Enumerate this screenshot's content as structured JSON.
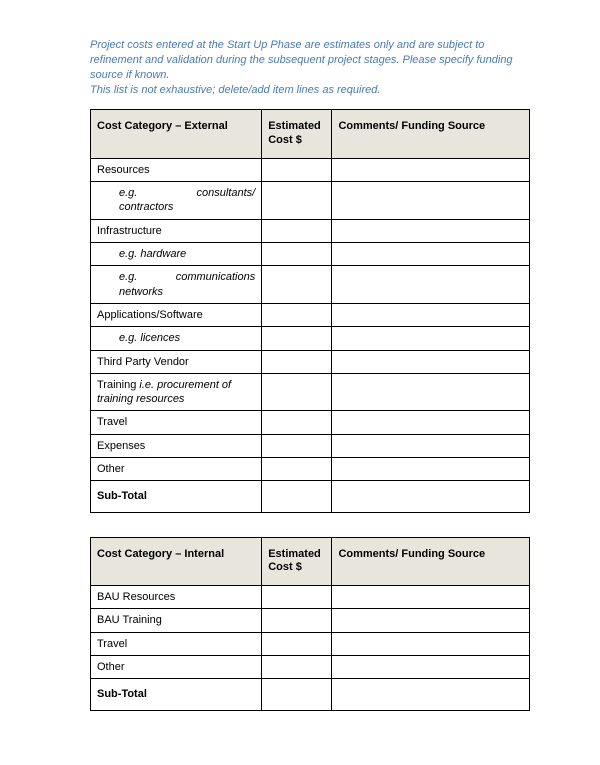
{
  "intro": {
    "line1": "Project costs entered at the Start Up Phase are estimates only and are subject to refinement and validation during the subsequent project stages. Please specify funding source if known.",
    "line2": "This list is not exhaustive; delete/add item lines as required."
  },
  "colors": {
    "intro_text": "#4a7ab5",
    "header_bg": "#e8e6dc",
    "border": "#000000",
    "page_bg": "#ffffff"
  },
  "columns": {
    "category_external": "Cost Category – External",
    "category_internal": "Cost Category – Internal",
    "cost": "Estimated Cost $",
    "comments": "Comments/ Funding Source",
    "widths": {
      "category": "39%",
      "cost": "16%",
      "comments": "45%"
    }
  },
  "table_external": {
    "rows": [
      {
        "label": "Resources",
        "indent": false,
        "italic": false,
        "cost": "",
        "comments": ""
      },
      {
        "label": "e.g. consultants/ contractors",
        "indent": true,
        "italic": true,
        "justify": true,
        "cost": "",
        "comments": ""
      },
      {
        "label": "Infrastructure",
        "indent": false,
        "italic": false,
        "cost": "",
        "comments": ""
      },
      {
        "label": "e.g. hardware",
        "indent": true,
        "italic": true,
        "cost": "",
        "comments": ""
      },
      {
        "label": "e.g. communications networks",
        "indent": true,
        "italic": true,
        "justify": true,
        "cost": "",
        "comments": ""
      },
      {
        "label": "Applications/Software",
        "indent": false,
        "italic": false,
        "cost": "",
        "comments": ""
      },
      {
        "label": "e.g. licences",
        "indent": true,
        "italic": true,
        "cost": "",
        "comments": ""
      },
      {
        "label": "Third Party Vendor",
        "indent": false,
        "italic": false,
        "cost": "",
        "comments": ""
      },
      {
        "label_html": "Training <span class=\"italic\">i.e. procurement of training resources</span>",
        "indent": false,
        "cost": "",
        "comments": ""
      },
      {
        "label": "Travel",
        "indent": false,
        "italic": false,
        "cost": "",
        "comments": ""
      },
      {
        "label": "Expenses",
        "indent": false,
        "italic": false,
        "cost": "",
        "comments": ""
      },
      {
        "label": "Other",
        "indent": false,
        "italic": false,
        "cost": "",
        "comments": ""
      }
    ],
    "subtotal": {
      "label": "Sub-Total",
      "cost": "",
      "comments": ""
    }
  },
  "table_internal": {
    "rows": [
      {
        "label": "BAU Resources",
        "indent": false,
        "italic": false,
        "cost": "",
        "comments": ""
      },
      {
        "label": "BAU Training",
        "indent": false,
        "italic": false,
        "cost": "",
        "comments": ""
      },
      {
        "label": "Travel",
        "indent": false,
        "italic": false,
        "cost": "",
        "comments": ""
      },
      {
        "label": "Other",
        "indent": false,
        "italic": false,
        "cost": "",
        "comments": ""
      }
    ],
    "subtotal": {
      "label": "Sub-Total",
      "cost": "",
      "comments": ""
    }
  },
  "typography": {
    "intro_fontsize": 11,
    "cell_fontsize": 11,
    "font_family": "Arial"
  }
}
